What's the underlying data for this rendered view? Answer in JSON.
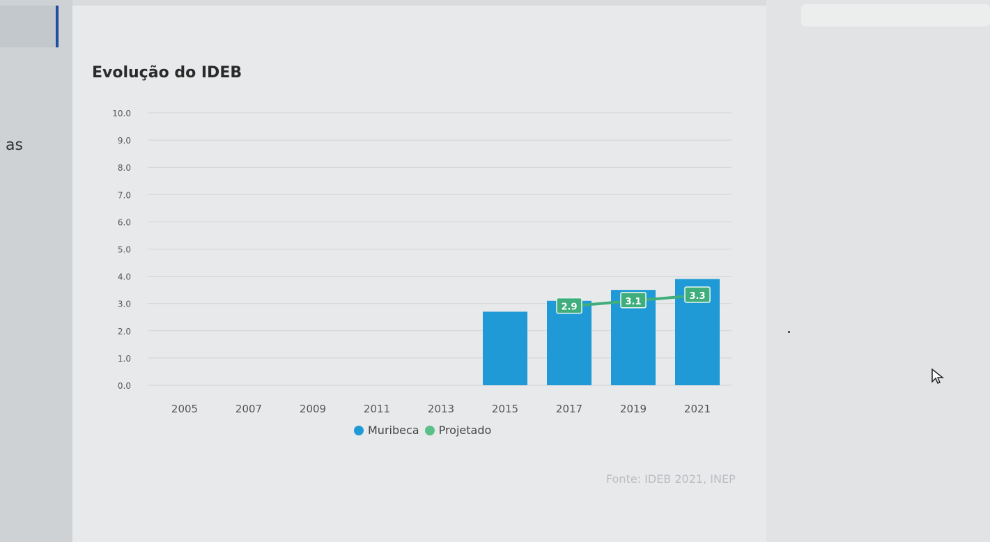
{
  "sidebar": {
    "partial_label": "as"
  },
  "card": {
    "title": "Evolução do IDEB",
    "source": "Fonte: IDEB 2021, INEP"
  },
  "legend": [
    {
      "label": "Muribeca",
      "color": "#1f9ad6"
    },
    {
      "label": "Projetado",
      "color": "#5bbf8a"
    }
  ],
  "colors": {
    "bar": "#1f9ad6",
    "projection": "#3fae7c",
    "grid": "#cfd3d6",
    "tick": "#555555"
  },
  "chart_data": {
    "type": "bar",
    "title": "Evolução do IDEB",
    "xlabel": "",
    "ylabel": "",
    "ylim": [
      0,
      10
    ],
    "y_ticks": [
      "0.0",
      "1.0",
      "2.0",
      "3.0",
      "4.0",
      "5.0",
      "6.0",
      "7.0",
      "8.0",
      "9.0",
      "10.0"
    ],
    "categories": [
      "2005",
      "2007",
      "2009",
      "2011",
      "2013",
      "2015",
      "2017",
      "2019",
      "2021"
    ],
    "series": [
      {
        "name": "Muribeca",
        "type": "bar",
        "values": [
          null,
          null,
          null,
          null,
          null,
          2.7,
          3.1,
          3.5,
          3.9
        ]
      },
      {
        "name": "Projetado",
        "type": "line",
        "values": [
          null,
          null,
          null,
          null,
          null,
          null,
          2.9,
          3.1,
          3.3
        ],
        "labels": [
          null,
          null,
          null,
          null,
          null,
          null,
          "2.9",
          "3.1",
          "3.3"
        ]
      }
    ],
    "grid": true,
    "legend_position": "bottom"
  }
}
